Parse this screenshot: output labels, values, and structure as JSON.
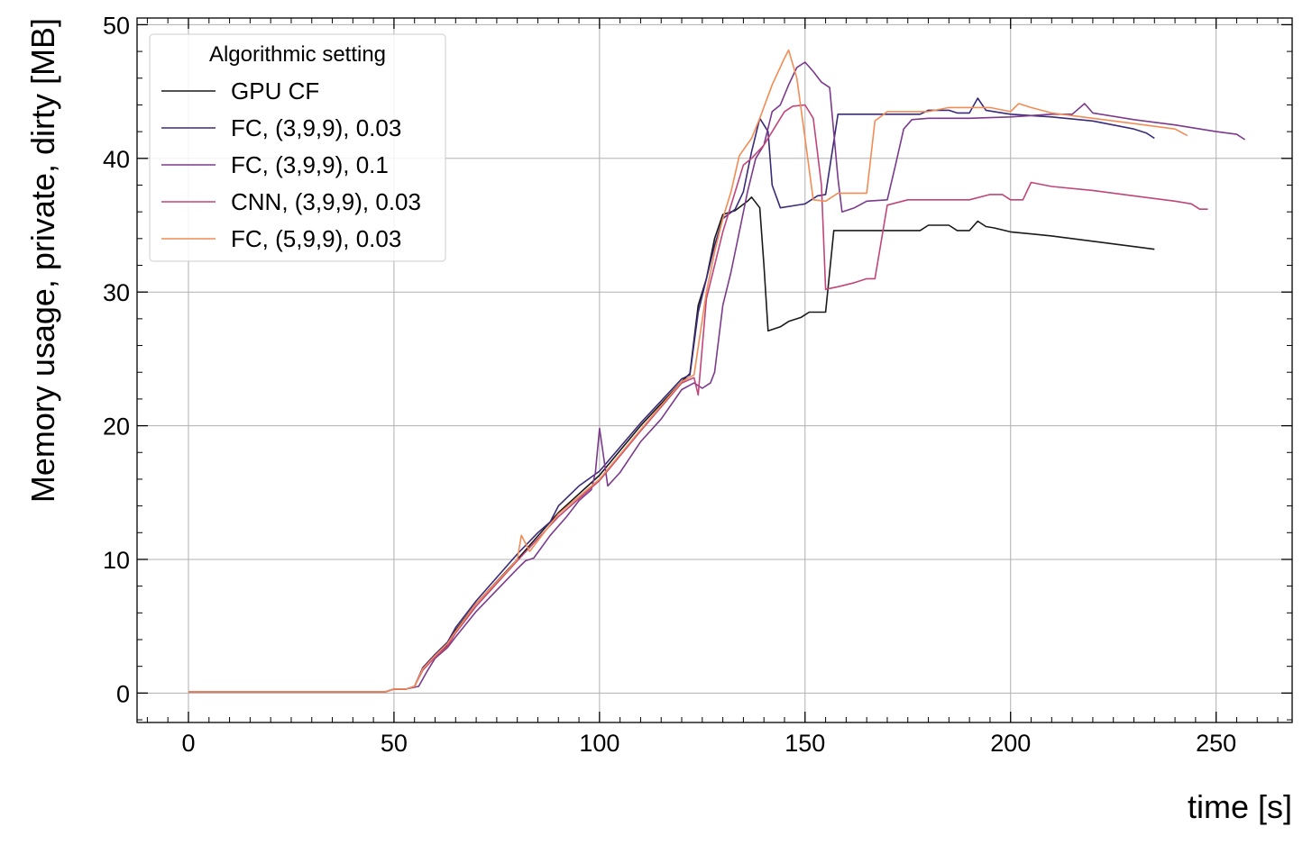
{
  "chart_data": {
    "type": "line",
    "xlabel": "time [s]",
    "ylabel": "Memory usage, private, dirty [MB]",
    "xlim": [
      -12.5,
      268.5
    ],
    "ylim": [
      -2.2,
      50.5
    ],
    "xticks": [
      0,
      50,
      100,
      150,
      200,
      250
    ],
    "yticks": [
      0,
      10,
      20,
      30,
      40,
      50
    ],
    "grid": true,
    "legend": {
      "title": "Algorithmic setting",
      "placement": "top-left"
    },
    "series": [
      {
        "name": "GPU CF",
        "color": "#1a1a1a",
        "points": [
          [
            0,
            0.1
          ],
          [
            48,
            0.1
          ],
          [
            50,
            0.3
          ],
          [
            53,
            0.3
          ],
          [
            55,
            0.5
          ],
          [
            57,
            1.8
          ],
          [
            60,
            2.8
          ],
          [
            63,
            3.6
          ],
          [
            65,
            4.7
          ],
          [
            70,
            6.7
          ],
          [
            80,
            10.0
          ],
          [
            90,
            13.5
          ],
          [
            100,
            16.3
          ],
          [
            110,
            20.0
          ],
          [
            120,
            23.3
          ],
          [
            122,
            23.9
          ],
          [
            124,
            29.0
          ],
          [
            126,
            31.0
          ],
          [
            128,
            34.0
          ],
          [
            130,
            35.8
          ],
          [
            133,
            36.1
          ],
          [
            136,
            36.8
          ],
          [
            137,
            37.1
          ],
          [
            139,
            36.3
          ],
          [
            140,
            32.0
          ],
          [
            141,
            27.1
          ],
          [
            144,
            27.4
          ],
          [
            146,
            27.8
          ],
          [
            149,
            28.1
          ],
          [
            151,
            28.5
          ],
          [
            153,
            28.5
          ],
          [
            155,
            28.5
          ],
          [
            157,
            34.6
          ],
          [
            170,
            34.6
          ],
          [
            178,
            34.6
          ],
          [
            180,
            35.0
          ],
          [
            185,
            35.0
          ],
          [
            187,
            34.6
          ],
          [
            190,
            34.6
          ],
          [
            192,
            35.3
          ],
          [
            194,
            34.9
          ],
          [
            196,
            34.8
          ],
          [
            200,
            34.5
          ],
          [
            210,
            34.2
          ],
          [
            220,
            33.8
          ],
          [
            230,
            33.4
          ],
          [
            235,
            33.2
          ]
        ]
      },
      {
        "name": "FC, (3,9,9), 0.03",
        "color": "#3b2a78",
        "points": [
          [
            0,
            0.1
          ],
          [
            48,
            0.1
          ],
          [
            50,
            0.3
          ],
          [
            53,
            0.3
          ],
          [
            55,
            0.5
          ],
          [
            57,
            1.9
          ],
          [
            60,
            2.9
          ],
          [
            63,
            3.8
          ],
          [
            65,
            4.9
          ],
          [
            70,
            6.9
          ],
          [
            80,
            10.4
          ],
          [
            85,
            12.0
          ],
          [
            88,
            12.8
          ],
          [
            90,
            14.0
          ],
          [
            95,
            15.5
          ],
          [
            100,
            16.6
          ],
          [
            110,
            20.2
          ],
          [
            120,
            23.5
          ],
          [
            122,
            23.8
          ],
          [
            124,
            28.5
          ],
          [
            126,
            31.0
          ],
          [
            128,
            33.5
          ],
          [
            130,
            35.5
          ],
          [
            133,
            36.2
          ],
          [
            135,
            37.5
          ],
          [
            137,
            40.5
          ],
          [
            139,
            43.0
          ],
          [
            141,
            42.0
          ],
          [
            142,
            38.0
          ],
          [
            144,
            36.3
          ],
          [
            150,
            36.6
          ],
          [
            153,
            37.2
          ],
          [
            155,
            37.3
          ],
          [
            158,
            43.3
          ],
          [
            170,
            43.3
          ],
          [
            178,
            43.3
          ],
          [
            180,
            43.6
          ],
          [
            185,
            43.6
          ],
          [
            187,
            43.4
          ],
          [
            190,
            43.4
          ],
          [
            192,
            44.5
          ],
          [
            194,
            43.6
          ],
          [
            196,
            43.5
          ],
          [
            200,
            43.3
          ],
          [
            210,
            43.1
          ],
          [
            220,
            42.8
          ],
          [
            230,
            42.2
          ],
          [
            233,
            41.9
          ],
          [
            235,
            41.5
          ]
        ]
      },
      {
        "name": "FC, (3,9,9), 0.1",
        "color": "#7b3a8c",
        "points": [
          [
            0,
            0.1
          ],
          [
            48,
            0.1
          ],
          [
            50,
            0.3
          ],
          [
            53,
            0.3
          ],
          [
            56,
            0.5
          ],
          [
            58,
            1.6
          ],
          [
            60,
            2.6
          ],
          [
            63,
            3.4
          ],
          [
            65,
            4.2
          ],
          [
            70,
            6.1
          ],
          [
            80,
            9.3
          ],
          [
            82,
            9.9
          ],
          [
            84,
            10.1
          ],
          [
            88,
            11.8
          ],
          [
            90,
            12.5
          ],
          [
            92,
            13.2
          ],
          [
            95,
            14.4
          ],
          [
            98,
            15.2
          ],
          [
            99,
            16.5
          ],
          [
            100,
            19.8
          ],
          [
            102,
            15.5
          ],
          [
            105,
            16.5
          ],
          [
            110,
            18.8
          ],
          [
            115,
            20.5
          ],
          [
            120,
            22.7
          ],
          [
            123,
            23.2
          ],
          [
            125,
            22.8
          ],
          [
            127,
            23.2
          ],
          [
            128,
            24.0
          ],
          [
            130,
            29.0
          ],
          [
            132,
            31.5
          ],
          [
            134,
            34.5
          ],
          [
            136,
            37.5
          ],
          [
            138,
            40.0
          ],
          [
            140,
            41.0
          ],
          [
            142,
            43.5
          ],
          [
            144,
            44.0
          ],
          [
            146,
            45.5
          ],
          [
            148,
            46.8
          ],
          [
            150,
            47.2
          ],
          [
            152,
            46.5
          ],
          [
            154,
            45.7
          ],
          [
            156,
            45.3
          ],
          [
            158,
            38.5
          ],
          [
            159,
            36.0
          ],
          [
            162,
            36.3
          ],
          [
            165,
            36.8
          ],
          [
            170,
            36.9
          ],
          [
            172,
            39.5
          ],
          [
            174,
            42.2
          ],
          [
            176,
            42.9
          ],
          [
            180,
            43.0
          ],
          [
            190,
            43.0
          ],
          [
            200,
            43.1
          ],
          [
            210,
            43.3
          ],
          [
            215,
            43.3
          ],
          [
            218,
            44.1
          ],
          [
            220,
            43.4
          ],
          [
            230,
            42.9
          ],
          [
            240,
            42.5
          ],
          [
            250,
            42.0
          ],
          [
            255,
            41.8
          ],
          [
            257,
            41.4
          ]
        ]
      },
      {
        "name": "CNN, (3,9,9), 0.03",
        "color": "#c0457a",
        "points": [
          [
            0,
            0.1
          ],
          [
            48,
            0.1
          ],
          [
            50,
            0.3
          ],
          [
            53,
            0.3
          ],
          [
            55,
            0.5
          ],
          [
            57,
            1.7
          ],
          [
            60,
            2.7
          ],
          [
            63,
            3.5
          ],
          [
            65,
            4.5
          ],
          [
            70,
            6.5
          ],
          [
            80,
            9.9
          ],
          [
            90,
            13.2
          ],
          [
            100,
            15.9
          ],
          [
            110,
            19.6
          ],
          [
            120,
            23.2
          ],
          [
            123,
            23.6
          ],
          [
            124,
            22.3
          ],
          [
            126,
            29.5
          ],
          [
            128,
            32.0
          ],
          [
            130,
            34.5
          ],
          [
            133,
            37.5
          ],
          [
            135,
            39.5
          ],
          [
            137,
            40.0
          ],
          [
            140,
            41.0
          ],
          [
            143,
            42.5
          ],
          [
            145,
            43.5
          ],
          [
            147,
            43.9
          ],
          [
            150,
            44.0
          ],
          [
            152,
            43.0
          ],
          [
            154,
            38.0
          ],
          [
            155,
            30.2
          ],
          [
            158,
            30.4
          ],
          [
            162,
            30.7
          ],
          [
            165,
            31.0
          ],
          [
            167,
            31.0
          ],
          [
            170,
            36.5
          ],
          [
            175,
            36.9
          ],
          [
            180,
            36.9
          ],
          [
            190,
            36.9
          ],
          [
            195,
            37.3
          ],
          [
            198,
            37.3
          ],
          [
            200,
            36.9
          ],
          [
            203,
            36.9
          ],
          [
            205,
            38.2
          ],
          [
            210,
            37.9
          ],
          [
            220,
            37.6
          ],
          [
            230,
            37.2
          ],
          [
            240,
            36.8
          ],
          [
            244,
            36.6
          ],
          [
            246,
            36.2
          ],
          [
            248,
            36.2
          ]
        ]
      },
      {
        "name": "FC, (5,9,9), 0.03",
        "color": "#f28c55",
        "points": [
          [
            0,
            0.1
          ],
          [
            48,
            0.1
          ],
          [
            50,
            0.3
          ],
          [
            53,
            0.3
          ],
          [
            55,
            0.5
          ],
          [
            57,
            1.8
          ],
          [
            60,
            2.8
          ],
          [
            63,
            3.7
          ],
          [
            65,
            4.6
          ],
          [
            70,
            6.7
          ],
          [
            78,
            9.3
          ],
          [
            80,
            10.0
          ],
          [
            81,
            11.8
          ],
          [
            83,
            10.6
          ],
          [
            90,
            13.4
          ],
          [
            100,
            16.0
          ],
          [
            110,
            19.7
          ],
          [
            120,
            23.3
          ],
          [
            123,
            23.8
          ],
          [
            126,
            30.0
          ],
          [
            128,
            33.0
          ],
          [
            130,
            35.5
          ],
          [
            132,
            37.5
          ],
          [
            134,
            40.2
          ],
          [
            137,
            41.5
          ],
          [
            139,
            43.0
          ],
          [
            142,
            45.5
          ],
          [
            145,
            47.5
          ],
          [
            146,
            48.1
          ],
          [
            148,
            46.0
          ],
          [
            150,
            41.5
          ],
          [
            152,
            36.9
          ],
          [
            155,
            36.8
          ],
          [
            158,
            37.4
          ],
          [
            162,
            37.4
          ],
          [
            165,
            37.4
          ],
          [
            167,
            42.8
          ],
          [
            170,
            43.5
          ],
          [
            180,
            43.5
          ],
          [
            185,
            43.8
          ],
          [
            190,
            43.8
          ],
          [
            195,
            43.8
          ],
          [
            200,
            43.5
          ],
          [
            202,
            44.1
          ],
          [
            205,
            43.8
          ],
          [
            210,
            43.4
          ],
          [
            220,
            43.0
          ],
          [
            230,
            42.6
          ],
          [
            240,
            42.2
          ],
          [
            243,
            41.7
          ]
        ]
      }
    ]
  }
}
